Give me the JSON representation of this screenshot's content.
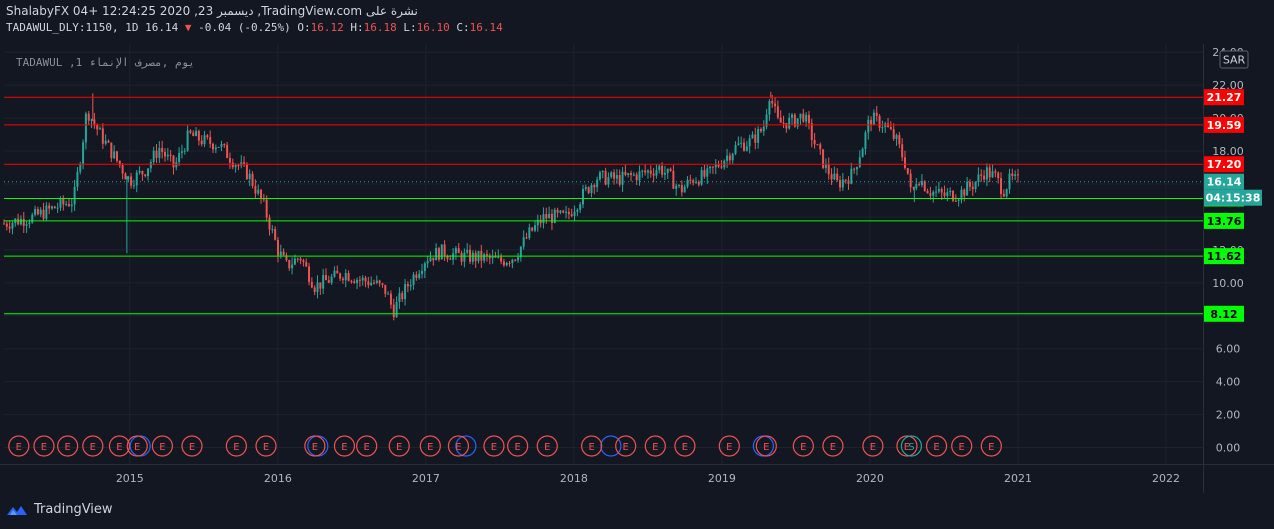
{
  "header": {
    "line1": "ShalabyFX 04+ 12:24:25 2020 ,23 ديسمبر ,TradingView.com نشرة على",
    "symbol": "TADAWUL_DLY:1150, 1D",
    "last": "16.14",
    "change": "-0.04 (-0.25%)",
    "o_label": "O:",
    "o": "16.12",
    "h_label": "H:",
    "h": "16.18",
    "l_label": "L:",
    "l": "16.10",
    "c_label": "C:",
    "c": "16.14"
  },
  "watermark": "TADAWUL ,1 يوم ,مصرف الإنماء",
  "currency": "SAR",
  "countdown": "04:15:38",
  "footer": {
    "brand": "TradingView"
  },
  "colors": {
    "background": "#131722",
    "up": "#26a69a",
    "down": "#ef5350",
    "resistance": "#ff0000",
    "support": "#00ff00"
  },
  "chart_data": {
    "type": "candlestick",
    "x_ticks": [
      "2015",
      "2016",
      "2017",
      "2018",
      "2019",
      "2020",
      "2021",
      "2022"
    ],
    "y_ticks": [
      "0.00",
      "2.00",
      "4.00",
      "6.00",
      "8.00",
      "10.00",
      "12.00",
      "14.00",
      "16.00",
      "18.00",
      "20.00",
      "22.00",
      "24.00"
    ],
    "ylim": [
      -1.0,
      24.5
    ],
    "xlim": [
      2014.15,
      2022.25
    ],
    "last_price": 16.14,
    "resistance_levels": [
      "21.27",
      "19.59",
      "17.20"
    ],
    "support_levels": [
      "15.12",
      "13.76",
      "11.62",
      "8.12"
    ],
    "price_path": [
      [
        2014.15,
        13.6
      ],
      [
        2014.35,
        14.0
      ],
      [
        2014.5,
        14.6
      ],
      [
        2014.62,
        15.0
      ],
      [
        2014.68,
        18.5
      ],
      [
        2014.71,
        20.5
      ],
      [
        2014.8,
        19.0
      ],
      [
        2014.9,
        17.6
      ],
      [
        2015.0,
        16.2
      ],
      [
        2015.1,
        16.8
      ],
      [
        2015.2,
        18.2
      ],
      [
        2015.3,
        17.0
      ],
      [
        2015.4,
        19.0
      ],
      [
        2015.5,
        18.6
      ],
      [
        2015.6,
        18.4
      ],
      [
        2015.7,
        17.4
      ],
      [
        2015.8,
        16.6
      ],
      [
        2015.9,
        14.8
      ],
      [
        2016.0,
        12.0
      ],
      [
        2016.06,
        11.0
      ],
      [
        2016.15,
        11.6
      ],
      [
        2016.25,
        9.8
      ],
      [
        2016.35,
        10.2
      ],
      [
        2016.45,
        10.6
      ],
      [
        2016.55,
        10.2
      ],
      [
        2016.65,
        10.0
      ],
      [
        2016.73,
        9.5
      ],
      [
        2016.78,
        8.3
      ],
      [
        2016.9,
        10.2
      ],
      [
        2017.0,
        11.5
      ],
      [
        2017.1,
        11.9
      ],
      [
        2017.25,
        11.6
      ],
      [
        2017.4,
        11.5
      ],
      [
        2017.5,
        11.3
      ],
      [
        2017.6,
        11.6
      ],
      [
        2017.7,
        13.0
      ],
      [
        2017.8,
        14.0
      ],
      [
        2017.95,
        14.0
      ],
      [
        2018.05,
        15.2
      ],
      [
        2018.15,
        16.4
      ],
      [
        2018.3,
        16.3
      ],
      [
        2018.45,
        16.6
      ],
      [
        2018.58,
        17.0
      ],
      [
        2018.65,
        16.4
      ],
      [
        2018.72,
        15.6
      ],
      [
        2018.8,
        16.3
      ],
      [
        2018.9,
        16.5
      ],
      [
        2019.0,
        17.4
      ],
      [
        2019.1,
        18.3
      ],
      [
        2019.2,
        18.6
      ],
      [
        2019.28,
        19.4
      ],
      [
        2019.32,
        21.5
      ],
      [
        2019.38,
        19.7
      ],
      [
        2019.48,
        19.8
      ],
      [
        2019.55,
        20.2
      ],
      [
        2019.62,
        18.6
      ],
      [
        2019.7,
        17.0
      ],
      [
        2019.78,
        16.0
      ],
      [
        2019.88,
        16.6
      ],
      [
        2019.95,
        18.3
      ],
      [
        2020.0,
        20.0
      ],
      [
        2020.1,
        19.6
      ],
      [
        2020.18,
        18.6
      ],
      [
        2020.25,
        17.0
      ],
      [
        2020.28,
        15.2
      ],
      [
        2020.32,
        16.5
      ],
      [
        2020.4,
        15.6
      ],
      [
        2020.5,
        15.3
      ],
      [
        2020.6,
        15.4
      ],
      [
        2020.7,
        16.0
      ],
      [
        2020.78,
        16.8
      ],
      [
        2020.85,
        16.4
      ],
      [
        2020.9,
        15.6
      ],
      [
        2020.95,
        16.3
      ],
      [
        2021.0,
        16.14
      ]
    ],
    "wick_spikes": [
      [
        2014.75,
        21.5
      ],
      [
        2014.98,
        11.8
      ],
      [
        2019.33,
        21.6
      ],
      [
        2020.3,
        14.9
      ]
    ],
    "earnings_markers": [
      2014.25,
      2014.42,
      2014.58,
      2014.75,
      2014.93,
      2015.05,
      2015.22,
      2015.42,
      2015.72,
      2015.92,
      2016.25,
      2016.45,
      2016.6,
      2016.82,
      2017.03,
      2017.22,
      2017.46,
      2017.62,
      2017.82,
      2018.12,
      2018.35,
      2018.55,
      2018.75,
      2019.05,
      2019.3,
      2019.55,
      2019.75,
      2020.02,
      2020.25,
      2020.45,
      2020.62,
      2020.82
    ],
    "earnings_marker_blue_offsets": [
      2015.07,
      2016.27,
      2017.27,
      2018.25,
      2019.28
    ],
    "split_marker": 2020.28,
    "marker_label_e": "E",
    "marker_label_s": "S"
  }
}
